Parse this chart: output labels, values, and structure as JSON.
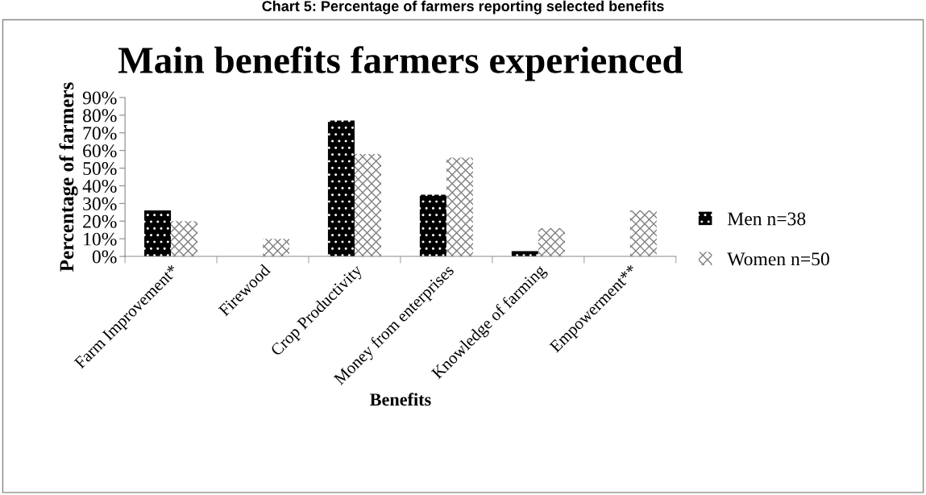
{
  "chart_data": {
    "type": "bar",
    "title": "Main benefits farmers experienced",
    "xlabel": "Benefits",
    "ylabel": "Percentage of farmers",
    "annotations": [
      "Chart 5: Percentage of farmers reporting selected benefits"
    ],
    "categories": [
      "Farm Improvement*",
      "Firewood",
      "Crop Productivity",
      "Money from enterprises",
      "Knowledge of farming",
      "Empowerment**"
    ],
    "series": [
      {
        "name": "Men n=38",
        "color": "#000000",
        "values": [
          26,
          0,
          77,
          35,
          3,
          0
        ]
      },
      {
        "name": "Women n=50",
        "color": "#ffffff",
        "values": [
          20,
          10,
          58,
          56,
          16,
          26
        ]
      }
    ],
    "ylim": [
      0,
      90
    ],
    "yticks": [
      {
        "value": 0,
        "label": "0%"
      },
      {
        "value": 10,
        "label": "10%"
      },
      {
        "value": 20,
        "label": "20%"
      },
      {
        "value": 30,
        "label": "30%"
      },
      {
        "value": 40,
        "label": "40%"
      },
      {
        "value": 50,
        "label": "50%"
      },
      {
        "value": 60,
        "label": "60%"
      },
      {
        "value": 70,
        "label": "70%"
      },
      {
        "value": 80,
        "label": "80%"
      },
      {
        "value": 90,
        "label": "90%"
      }
    ],
    "grid": false,
    "legend": "right"
  }
}
